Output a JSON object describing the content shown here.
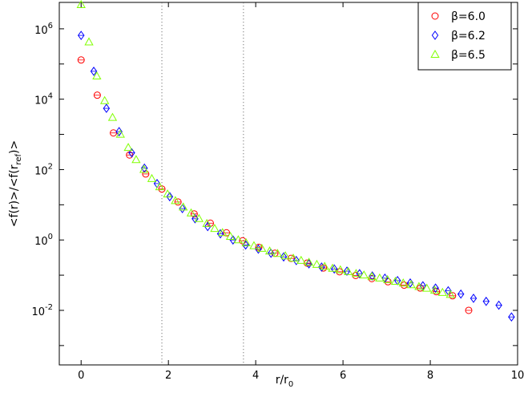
{
  "chart_data": {
    "type": "scatter",
    "title": "",
    "xlabel": {
      "main": "r/r",
      "sub": "0"
    },
    "ylabel": {
      "pre": "<f(r)>/<f(r",
      "sub": "ref",
      "post": ")>"
    },
    "xlim": [
      -0.5,
      10.0
    ],
    "ylim_log10": [
      -3.55,
      6.75
    ],
    "yscale": "log",
    "x_ticks": [
      0,
      2,
      4,
      6,
      8,
      10
    ],
    "y_ticks_log10": [
      -2,
      0,
      2,
      4,
      6
    ],
    "y_tick_base": "10",
    "vlines": [
      1.85,
      3.72
    ],
    "grid": false,
    "legend": {
      "position": "top-right"
    },
    "series": [
      {
        "name": "β=6.0",
        "marker": "circle",
        "color": "#ff0000",
        "x": [
          0.0,
          0.37,
          0.74,
          1.11,
          1.48,
          1.85,
          2.22,
          2.59,
          2.96,
          3.33,
          3.7,
          4.07,
          4.44,
          4.81,
          5.18,
          5.55,
          5.92,
          6.29,
          6.66,
          7.03,
          7.4,
          7.77,
          8.14,
          8.51,
          8.88
        ],
        "y": [
          130000,
          13000,
          1100,
          260,
          75,
          28,
          12,
          5.5,
          3.0,
          1.6,
          0.95,
          0.62,
          0.42,
          0.3,
          0.22,
          0.16,
          0.125,
          0.098,
          0.08,
          0.065,
          0.052,
          0.043,
          0.034,
          0.026,
          0.01
        ]
      },
      {
        "name": "β=6.2",
        "marker": "diamond",
        "color": "#0000ff",
        "x": [
          0.0,
          0.29,
          0.58,
          0.87,
          1.16,
          1.45,
          1.74,
          2.03,
          2.32,
          2.61,
          2.9,
          3.19,
          3.48,
          3.77,
          4.06,
          4.35,
          4.64,
          4.93,
          5.22,
          5.51,
          5.8,
          6.09,
          6.38,
          6.67,
          6.96,
          7.25,
          7.54,
          7.83,
          8.12,
          8.41,
          8.7,
          8.99,
          9.28,
          9.57,
          9.86
        ],
        "y": [
          650000,
          62000,
          5500,
          1200,
          300,
          110,
          40,
          17,
          7.8,
          4.0,
          2.4,
          1.5,
          1.0,
          0.72,
          0.55,
          0.42,
          0.33,
          0.26,
          0.21,
          0.17,
          0.15,
          0.13,
          0.11,
          0.095,
          0.082,
          0.07,
          0.06,
          0.05,
          0.043,
          0.036,
          0.029,
          0.022,
          0.018,
          0.014,
          0.0065
        ]
      },
      {
        "name": "β=6.5",
        "marker": "triangle",
        "color": "#80ff00",
        "x": [
          0.0,
          0.18,
          0.36,
          0.54,
          0.72,
          0.9,
          1.08,
          1.26,
          1.44,
          1.62,
          1.8,
          1.98,
          2.16,
          2.34,
          2.52,
          2.7,
          2.88,
          3.06,
          3.24,
          3.42,
          3.6,
          3.78,
          3.96,
          4.14,
          4.32,
          4.5,
          4.68,
          4.86,
          5.04,
          5.22,
          5.4,
          5.58,
          5.76,
          5.94,
          6.12,
          6.3,
          6.48,
          6.66,
          6.84,
          7.02,
          7.2,
          7.38,
          7.56,
          7.74,
          7.92,
          8.1,
          8.28,
          8.46
        ],
        "y": [
          4800000,
          420000,
          45000,
          9000,
          3000,
          1000,
          420,
          190,
          100,
          55,
          32,
          20,
          13,
          8.5,
          5.8,
          4.0,
          2.9,
          2.1,
          1.6,
          1.25,
          1.0,
          0.82,
          0.68,
          0.57,
          0.48,
          0.41,
          0.35,
          0.3,
          0.26,
          0.23,
          0.2,
          0.175,
          0.155,
          0.14,
          0.125,
          0.11,
          0.1,
          0.09,
          0.082,
          0.074,
          0.066,
          0.059,
          0.053,
          0.047,
          0.042,
          0.037,
          0.032,
          0.028
        ]
      }
    ]
  }
}
